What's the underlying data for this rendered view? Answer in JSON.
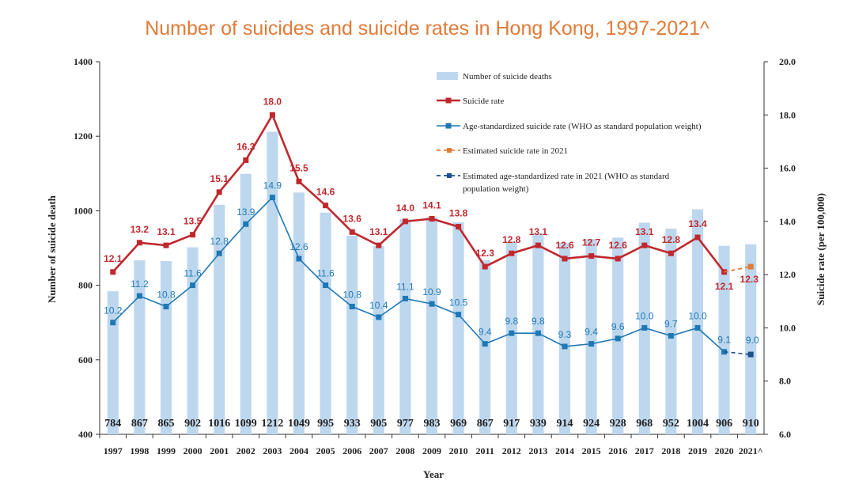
{
  "chart_data": {
    "type": "bar",
    "title": "Number of suicides and suicide rates in Hong Kong, 1997-2021^",
    "xlabel": "Year",
    "ylabel": "Number of suicide death",
    "y2label": "Suicide rate (per 100,000)",
    "ylim": [
      400,
      1400
    ],
    "y2lim": [
      6.0,
      20.0
    ],
    "y_ticks": [
      "400",
      "600",
      "800",
      "1000",
      "1200",
      "1400"
    ],
    "y2_ticks": [
      "6.0",
      "8.0",
      "10.0",
      "12.0",
      "14.0",
      "16.0",
      "18.0",
      "20.0"
    ],
    "categories": [
      "1997",
      "1998",
      "1999",
      "2000",
      "2001",
      "2002",
      "2003",
      "2004",
      "2005",
      "2006",
      "2007",
      "2008",
      "2009",
      "2010",
      "2011",
      "2012",
      "2013",
      "2014",
      "2015",
      "2016",
      "2017",
      "2018",
      "2019",
      "2020",
      "2021^"
    ],
    "series": [
      {
        "name": "Number of suicide deaths",
        "axis": "left",
        "values": [
          784,
          867,
          865,
          902,
          1016,
          1099,
          1212,
          1049,
          995,
          933,
          905,
          977,
          983,
          969,
          867,
          917,
          939,
          914,
          924,
          928,
          968,
          952,
          1004,
          906,
          910
        ],
        "labels": [
          "784",
          "867",
          "865",
          "902",
          "1016",
          "1099",
          "1212",
          "1049",
          "995",
          "933",
          "905",
          "977",
          "983",
          "969",
          "867",
          "917",
          "939",
          "914",
          "924",
          "928",
          "968",
          "952",
          "1004",
          "906",
          "910"
        ],
        "color": "#bdd7ee"
      },
      {
        "name": "Suicide rate",
        "axis": "right",
        "values": [
          12.1,
          13.2,
          13.1,
          13.5,
          15.1,
          16.3,
          18.0,
          15.5,
          14.6,
          13.6,
          13.1,
          14.0,
          14.1,
          13.8,
          12.3,
          12.8,
          13.1,
          12.6,
          12.7,
          12.6,
          13.1,
          12.8,
          13.4,
          12.1,
          null
        ],
        "labels": [
          "12.1",
          "13.2",
          "13.1",
          "13.5",
          "15.1",
          "16.3",
          "18.0",
          "15.5",
          "14.6",
          "13.6",
          "13.1",
          "14.0",
          "14.1",
          "13.8",
          "12.3",
          "12.8",
          "13.1",
          "12.6",
          "12.7",
          "12.6",
          "13.1",
          "12.8",
          "13.4",
          "12.1",
          ""
        ],
        "color": "#c0282e"
      },
      {
        "name": "Age-standardized suicide rate (WHO as standard population weight)",
        "axis": "right",
        "values": [
          10.2,
          11.2,
          10.8,
          11.6,
          12.8,
          13.9,
          14.9,
          12.6,
          11.6,
          10.8,
          10.4,
          11.1,
          10.9,
          10.5,
          9.4,
          9.8,
          9.8,
          9.3,
          9.4,
          9.6,
          10.0,
          9.7,
          10.0,
          9.1,
          null
        ],
        "labels": [
          "10.2",
          "11.2",
          "10.8",
          "11.6",
          "12.8",
          "13.9",
          "14.9",
          "12.6",
          "11.6",
          "10.8",
          "10.4",
          "11.1",
          "10.9",
          "10.5",
          "9.4",
          "9.8",
          "9.8",
          "9.3",
          "9.4",
          "9.6",
          "10.0",
          "9.7",
          "10.0",
          "9.1",
          ""
        ],
        "color": "#1f78b4"
      },
      {
        "name": "Estimated suicide rate in 2021",
        "axis": "right",
        "x": [
          "2020",
          "2021^"
        ],
        "values": [
          12.1,
          12.3
        ],
        "labels": [
          "",
          "12.3"
        ],
        "color": "#e07b39"
      },
      {
        "name": "Estimated age-standardized rate in 2021 (WHO as standard population weight)",
        "axis": "right",
        "x": [
          "2020",
          "2021^"
        ],
        "values": [
          9.1,
          9.0
        ],
        "labels": [
          "",
          "9.0"
        ],
        "color": "#1f4e8c"
      }
    ],
    "legend_position": "top-right"
  }
}
